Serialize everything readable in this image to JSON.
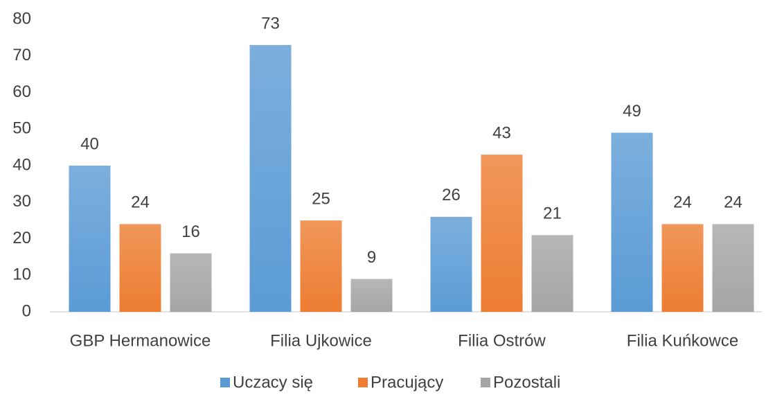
{
  "chart_data": {
    "type": "bar",
    "categories": [
      "GBP Hermanowice",
      "Filia Ujkowice",
      "Filia Ostrów",
      "Filia Kuńkowce"
    ],
    "series": [
      {
        "name": "Uczacy się",
        "color": "#5b9bd5",
        "values": [
          40,
          73,
          26,
          49
        ]
      },
      {
        "name": "Pracujący",
        "color": "#ed7d31",
        "values": [
          24,
          25,
          43,
          24
        ]
      },
      {
        "name": "Pozostali",
        "color": "#a5a5a5",
        "values": [
          16,
          9,
          21,
          24
        ]
      }
    ],
    "ylim": [
      0,
      80
    ],
    "yticks": [
      0,
      10,
      20,
      30,
      40,
      50,
      60,
      70,
      80
    ],
    "grid": false,
    "legend": "bottom"
  }
}
